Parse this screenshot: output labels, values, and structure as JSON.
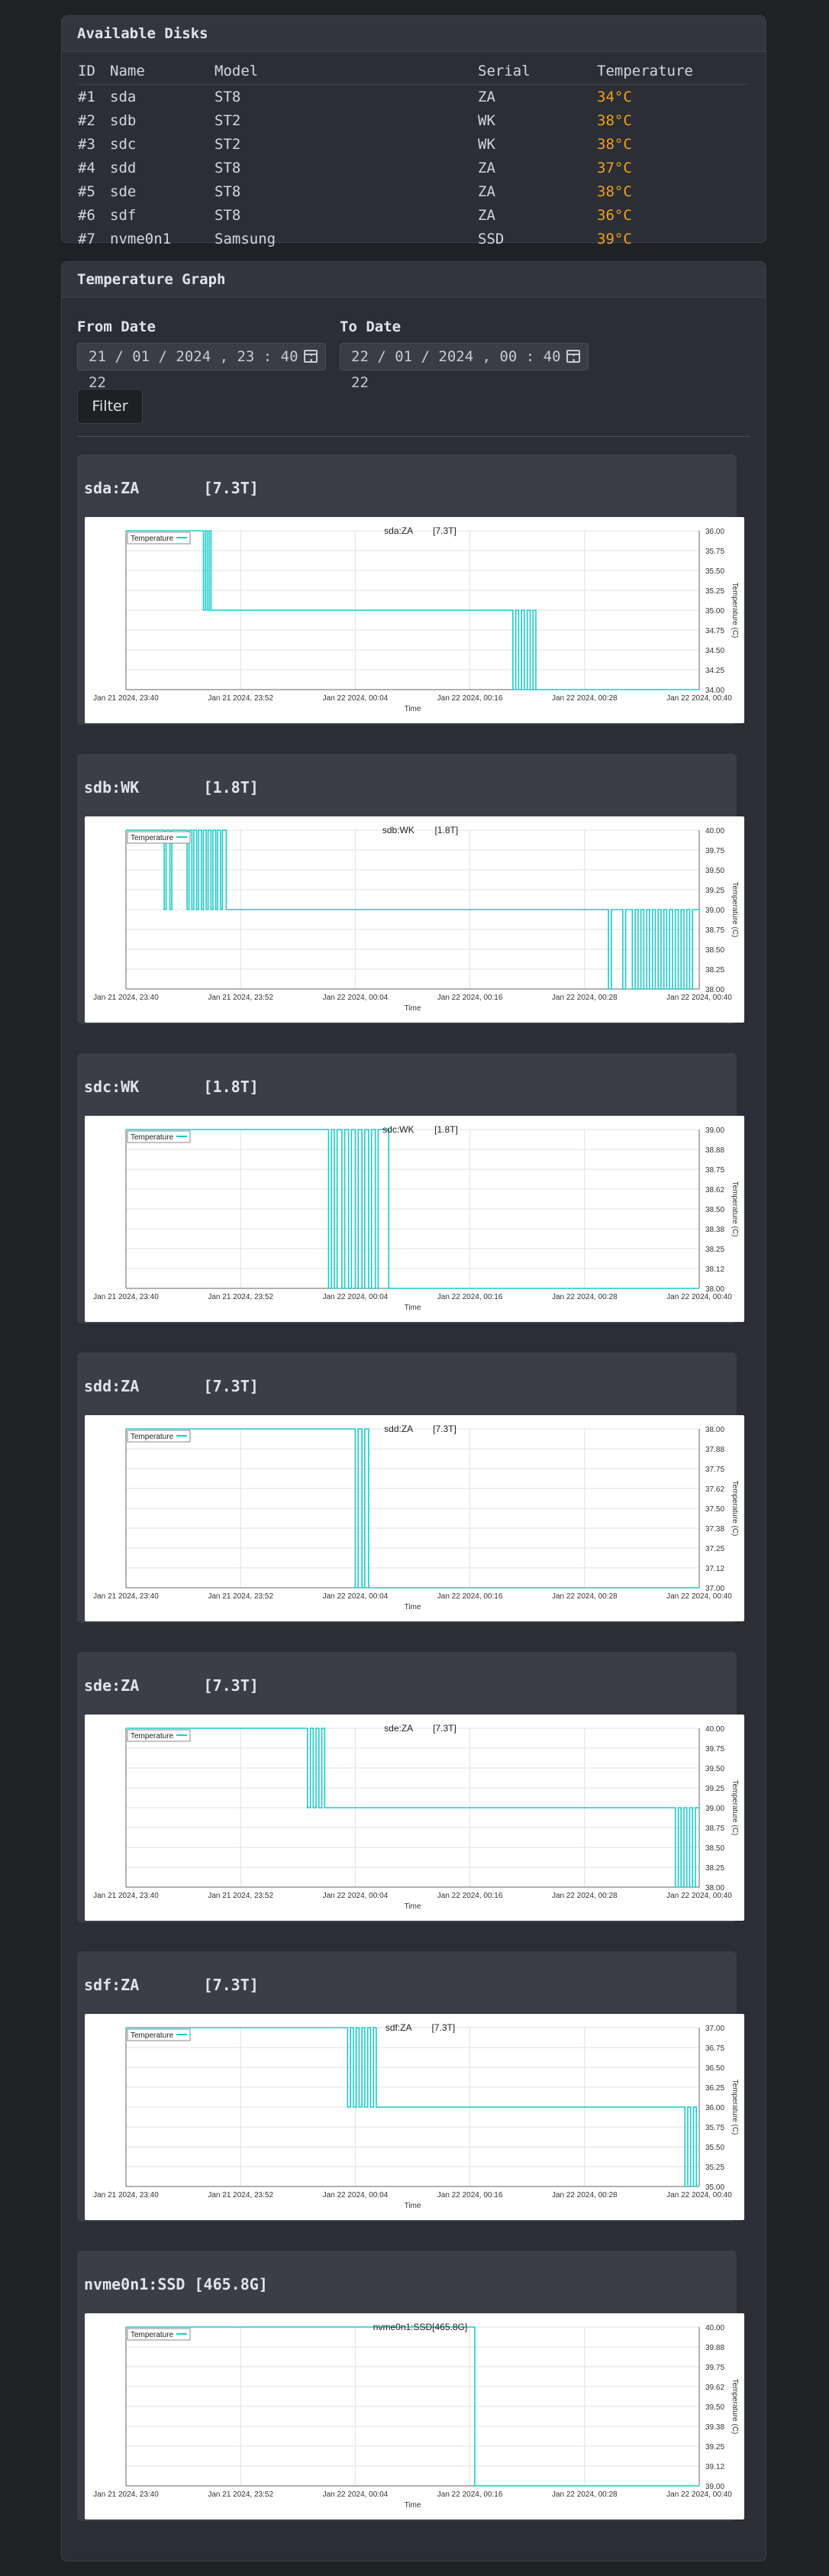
{
  "disks": {
    "title": "Available Disks",
    "headers": [
      "ID",
      "Name",
      "Model",
      "Serial",
      "Temperature"
    ],
    "rows": [
      {
        "id": "#1",
        "name": "sda",
        "model": "ST8",
        "serial": "ZA",
        "temp": "34°C"
      },
      {
        "id": "#2",
        "name": "sdb",
        "model": "ST2",
        "serial": "WK",
        "temp": "38°C"
      },
      {
        "id": "#3",
        "name": "sdc",
        "model": "ST2",
        "serial": "WK",
        "temp": "38°C"
      },
      {
        "id": "#4",
        "name": "sdd",
        "model": "ST8",
        "serial": "ZA",
        "temp": "37°C"
      },
      {
        "id": "#5",
        "name": "sde",
        "model": "ST8",
        "serial": "ZA",
        "temp": "38°C"
      },
      {
        "id": "#6",
        "name": "sdf",
        "model": "ST8",
        "serial": "ZA",
        "temp": "36°C"
      },
      {
        "id": "#7",
        "name": "nvme0n1",
        "model": "Samsung",
        "serial": "SSD",
        "temp": "39°C"
      }
    ]
  },
  "graph": {
    "title": "Temperature Graph",
    "from_label": "From Date",
    "to_label": "To Date",
    "from_value": "21 / 01 / 2024 ,  23 : 40 : 22",
    "to_value": "22 / 01 / 2024 ,  00 : 40 : 22",
    "filter_label": "Filter"
  },
  "chart_data": [
    {
      "type": "line",
      "card_title": "sda:ZA       [7.3T]",
      "title": "sda:ZA        [7.3T]",
      "legend": "Temperature",
      "xlabel": "Time",
      "ylabel": "Temperature (C)",
      "x_ticks": [
        "Jan 21 2024, 23:40",
        "Jan 21 2024, 23:52",
        "Jan 22 2024, 00:04",
        "Jan 22 2024, 00:16",
        "Jan 22 2024, 00:28",
        "Jan 22 2024, 00:40"
      ],
      "y_ticks": [
        "36.00",
        "35.75",
        "35.50",
        "35.25",
        "35.00",
        "34.75",
        "34.50",
        "34.25",
        "34.00"
      ],
      "ylim": [
        34,
        36
      ],
      "points": [
        [
          0,
          36
        ],
        [
          8.1,
          36
        ],
        [
          8.1,
          35
        ],
        [
          8.3,
          35
        ],
        [
          8.3,
          36
        ],
        [
          8.5,
          36
        ],
        [
          8.5,
          35
        ],
        [
          8.7,
          35
        ],
        [
          8.7,
          36
        ],
        [
          8.9,
          36
        ],
        [
          8.9,
          35
        ],
        [
          40.5,
          35
        ],
        [
          40.5,
          34
        ],
        [
          40.8,
          34
        ],
        [
          40.8,
          35
        ],
        [
          41.1,
          35
        ],
        [
          41.1,
          34
        ],
        [
          41.4,
          34
        ],
        [
          41.4,
          35
        ],
        [
          41.7,
          35
        ],
        [
          41.7,
          34
        ],
        [
          42.0,
          34
        ],
        [
          42.0,
          35
        ],
        [
          42.3,
          35
        ],
        [
          42.3,
          34
        ],
        [
          42.6,
          34
        ],
        [
          42.6,
          35
        ],
        [
          42.9,
          35
        ],
        [
          42.9,
          34
        ],
        [
          60,
          34
        ]
      ]
    },
    {
      "type": "line",
      "card_title": "sdb:WK       [1.8T]",
      "title": "sdb:WK        [1.8T]",
      "legend": "Temperature",
      "xlabel": "Time",
      "ylabel": "Temperature (C)",
      "x_ticks": [
        "Jan 21 2024, 23:40",
        "Jan 21 2024, 23:52",
        "Jan 22 2024, 00:04",
        "Jan 22 2024, 00:16",
        "Jan 22 2024, 00:28",
        "Jan 22 2024, 00:40"
      ],
      "y_ticks": [
        "40.00",
        "39.75",
        "39.50",
        "39.25",
        "39.00",
        "38.75",
        "38.50",
        "38.25",
        "38.00"
      ],
      "ylim": [
        38,
        40
      ],
      "points": [
        [
          0,
          40
        ],
        [
          4.0,
          40
        ],
        [
          4.0,
          39
        ],
        [
          4.2,
          39
        ],
        [
          4.2,
          40
        ],
        [
          4.6,
          40
        ],
        [
          4.6,
          39
        ],
        [
          4.8,
          39
        ],
        [
          4.8,
          40
        ],
        [
          6.4,
          40
        ],
        [
          6.4,
          39
        ],
        [
          6.6,
          39
        ],
        [
          6.6,
          40
        ],
        [
          6.9,
          40
        ],
        [
          6.9,
          39
        ],
        [
          7.1,
          39
        ],
        [
          7.1,
          40
        ],
        [
          7.4,
          40
        ],
        [
          7.4,
          39
        ],
        [
          7.6,
          39
        ],
        [
          7.6,
          40
        ],
        [
          7.9,
          40
        ],
        [
          7.9,
          39
        ],
        [
          8.1,
          39
        ],
        [
          8.1,
          40
        ],
        [
          8.4,
          40
        ],
        [
          8.4,
          39
        ],
        [
          8.6,
          39
        ],
        [
          8.6,
          40
        ],
        [
          8.9,
          40
        ],
        [
          8.9,
          39
        ],
        [
          9.1,
          39
        ],
        [
          9.1,
          40
        ],
        [
          9.4,
          40
        ],
        [
          9.4,
          39
        ],
        [
          9.6,
          39
        ],
        [
          9.6,
          40
        ],
        [
          9.9,
          40
        ],
        [
          9.9,
          39
        ],
        [
          10.1,
          39
        ],
        [
          10.1,
          40
        ],
        [
          10.5,
          40
        ],
        [
          10.5,
          39
        ],
        [
          50.5,
          39
        ],
        [
          50.5,
          38
        ],
        [
          50.8,
          38
        ],
        [
          50.8,
          39
        ],
        [
          52.0,
          39
        ],
        [
          52.0,
          38
        ],
        [
          52.3,
          38
        ],
        [
          52.3,
          39
        ],
        [
          53.0,
          39
        ],
        [
          53.0,
          38
        ],
        [
          53.3,
          38
        ],
        [
          53.3,
          39
        ],
        [
          53.6,
          39
        ],
        [
          53.6,
          38
        ],
        [
          53.9,
          38
        ],
        [
          53.9,
          39
        ],
        [
          54.2,
          39
        ],
        [
          54.2,
          38
        ],
        [
          54.5,
          38
        ],
        [
          54.5,
          39
        ],
        [
          54.8,
          39
        ],
        [
          54.8,
          38
        ],
        [
          55.1,
          38
        ],
        [
          55.1,
          39
        ],
        [
          55.4,
          39
        ],
        [
          55.4,
          38
        ],
        [
          55.7,
          38
        ],
        [
          55.7,
          39
        ],
        [
          56.0,
          39
        ],
        [
          56.0,
          38
        ],
        [
          56.3,
          38
        ],
        [
          56.3,
          39
        ],
        [
          56.6,
          39
        ],
        [
          56.6,
          38
        ],
        [
          56.9,
          38
        ],
        [
          56.9,
          39
        ],
        [
          57.2,
          39
        ],
        [
          57.2,
          38
        ],
        [
          57.5,
          38
        ],
        [
          57.5,
          39
        ],
        [
          57.8,
          39
        ],
        [
          57.8,
          38
        ],
        [
          58.1,
          38
        ],
        [
          58.1,
          39
        ],
        [
          58.4,
          39
        ],
        [
          58.4,
          38
        ],
        [
          58.7,
          38
        ],
        [
          58.7,
          39
        ],
        [
          59.0,
          39
        ],
        [
          59.0,
          38
        ],
        [
          59.3,
          38
        ],
        [
          59.3,
          39
        ],
        [
          60,
          39
        ]
      ]
    },
    {
      "type": "line",
      "card_title": "sdc:WK       [1.8T]",
      "title": "sdc:WK        [1.8T]",
      "legend": "Temperature",
      "xlabel": "Time",
      "ylabel": "Temperature (C)",
      "x_ticks": [
        "Jan 21 2024, 23:40",
        "Jan 21 2024, 23:52",
        "Jan 22 2024, 00:04",
        "Jan 22 2024, 00:16",
        "Jan 22 2024, 00:28",
        "Jan 22 2024, 00:40"
      ],
      "y_ticks": [
        "39.00",
        "38.88",
        "38.75",
        "38.62",
        "38.50",
        "38.38",
        "38.25",
        "38.12",
        "38.00"
      ],
      "ylim": [
        38,
        39
      ],
      "points": [
        [
          0,
          39
        ],
        [
          21.2,
          39
        ],
        [
          21.2,
          38
        ],
        [
          21.5,
          38
        ],
        [
          21.5,
          39
        ],
        [
          21.8,
          39
        ],
        [
          21.8,
          38
        ],
        [
          22.1,
          38
        ],
        [
          22.1,
          39
        ],
        [
          22.6,
          39
        ],
        [
          22.6,
          38
        ],
        [
          22.9,
          38
        ],
        [
          22.9,
          39
        ],
        [
          23.3,
          39
        ],
        [
          23.3,
          38
        ],
        [
          23.6,
          38
        ],
        [
          23.6,
          39
        ],
        [
          24.0,
          39
        ],
        [
          24.0,
          38
        ],
        [
          24.3,
          38
        ],
        [
          24.3,
          39
        ],
        [
          24.7,
          39
        ],
        [
          24.7,
          38
        ],
        [
          25.0,
          38
        ],
        [
          25.0,
          39
        ],
        [
          25.4,
          39
        ],
        [
          25.4,
          38
        ],
        [
          25.7,
          38
        ],
        [
          25.7,
          39
        ],
        [
          26.1,
          39
        ],
        [
          26.1,
          38
        ],
        [
          26.4,
          38
        ],
        [
          26.4,
          39
        ],
        [
          27.5,
          39
        ],
        [
          27.5,
          38
        ],
        [
          60,
          38
        ]
      ]
    },
    {
      "type": "line",
      "card_title": "sdd:ZA       [7.3T]",
      "title": "sdd:ZA        [7.3T]",
      "legend": "Temperature",
      "xlabel": "Time",
      "ylabel": "Temperature (C)",
      "x_ticks": [
        "Jan 21 2024, 23:40",
        "Jan 21 2024, 23:52",
        "Jan 22 2024, 00:04",
        "Jan 22 2024, 00:16",
        "Jan 22 2024, 00:28",
        "Jan 22 2024, 00:40"
      ],
      "y_ticks": [
        "38.00",
        "37.88",
        "37.75",
        "37.62",
        "37.50",
        "37.38",
        "37.25",
        "37.12",
        "37.00"
      ],
      "ylim": [
        37,
        38
      ],
      "points": [
        [
          0,
          38
        ],
        [
          24.0,
          38
        ],
        [
          24.0,
          37
        ],
        [
          24.3,
          37
        ],
        [
          24.3,
          38
        ],
        [
          24.7,
          38
        ],
        [
          24.7,
          37
        ],
        [
          25.0,
          37
        ],
        [
          25.0,
          38
        ],
        [
          25.4,
          38
        ],
        [
          25.4,
          37
        ],
        [
          60,
          37
        ]
      ]
    },
    {
      "type": "line",
      "card_title": "sde:ZA       [7.3T]",
      "title": "sde:ZA        [7.3T]",
      "legend": "Temperature",
      "xlabel": "Time",
      "ylabel": "Temperature (C)",
      "x_ticks": [
        "Jan 21 2024, 23:40",
        "Jan 21 2024, 23:52",
        "Jan 22 2024, 00:04",
        "Jan 22 2024, 00:16",
        "Jan 22 2024, 00:28",
        "Jan 22 2024, 00:40"
      ],
      "y_ticks": [
        "40.00",
        "39.75",
        "39.50",
        "39.25",
        "39.00",
        "38.75",
        "38.50",
        "38.25",
        "38.00"
      ],
      "ylim": [
        38,
        40
      ],
      "points": [
        [
          0,
          40
        ],
        [
          19.0,
          40
        ],
        [
          19.0,
          39
        ],
        [
          19.3,
          39
        ],
        [
          19.3,
          40
        ],
        [
          19.6,
          40
        ],
        [
          19.6,
          39
        ],
        [
          19.9,
          39
        ],
        [
          19.9,
          40
        ],
        [
          20.2,
          40
        ],
        [
          20.2,
          39
        ],
        [
          20.5,
          39
        ],
        [
          20.5,
          40
        ],
        [
          20.8,
          40
        ],
        [
          20.8,
          39
        ],
        [
          57.5,
          39
        ],
        [
          57.5,
          38
        ],
        [
          57.8,
          38
        ],
        [
          57.8,
          39
        ],
        [
          58.1,
          39
        ],
        [
          58.1,
          38
        ],
        [
          58.4,
          38
        ],
        [
          58.4,
          39
        ],
        [
          58.7,
          39
        ],
        [
          58.7,
          38
        ],
        [
          59.0,
          38
        ],
        [
          59.0,
          39
        ],
        [
          59.3,
          39
        ],
        [
          59.3,
          38
        ],
        [
          59.6,
          38
        ],
        [
          59.6,
          39
        ],
        [
          60,
          39
        ]
      ]
    },
    {
      "type": "line",
      "card_title": "sdf:ZA       [7.3T]",
      "title": "sdf:ZA        [7.3T]",
      "legend": "Temperature",
      "xlabel": "Time",
      "ylabel": "Temperature (C)",
      "x_ticks": [
        "Jan 21 2024, 23:40",
        "Jan 21 2024, 23:52",
        "Jan 22 2024, 00:04",
        "Jan 22 2024, 00:16",
        "Jan 22 2024, 00:28",
        "Jan 22 2024, 00:40"
      ],
      "y_ticks": [
        "37.00",
        "36.75",
        "36.50",
        "36.25",
        "36.00",
        "35.75",
        "35.50",
        "35.25",
        "35.00"
      ],
      "ylim": [
        35,
        37
      ],
      "points": [
        [
          0,
          37
        ],
        [
          23.2,
          37
        ],
        [
          23.2,
          36
        ],
        [
          23.5,
          36
        ],
        [
          23.5,
          37
        ],
        [
          23.8,
          37
        ],
        [
          23.8,
          36
        ],
        [
          24.1,
          36
        ],
        [
          24.1,
          37
        ],
        [
          24.4,
          37
        ],
        [
          24.4,
          36
        ],
        [
          24.7,
          36
        ],
        [
          24.7,
          37
        ],
        [
          25.0,
          37
        ],
        [
          25.0,
          36
        ],
        [
          25.3,
          36
        ],
        [
          25.3,
          37
        ],
        [
          25.6,
          37
        ],
        [
          25.6,
          36
        ],
        [
          25.9,
          36
        ],
        [
          25.9,
          37
        ],
        [
          26.2,
          37
        ],
        [
          26.2,
          36
        ],
        [
          58.5,
          36
        ],
        [
          58.5,
          35
        ],
        [
          58.8,
          35
        ],
        [
          58.8,
          36
        ],
        [
          59.1,
          36
        ],
        [
          59.1,
          35
        ],
        [
          59.4,
          35
        ],
        [
          59.4,
          36
        ],
        [
          59.7,
          36
        ],
        [
          59.7,
          35
        ],
        [
          60,
          35
        ]
      ]
    },
    {
      "type": "line",
      "card_title": "nvme0n1:SSD [465.8G]",
      "title": "nvme0n1:SSD[465.8G]",
      "legend": "Temperature",
      "xlabel": "Time",
      "ylabel": "Temperature (C)",
      "x_ticks": [
        "Jan 21 2024, 23:40",
        "Jan 21 2024, 23:52",
        "Jan 22 2024, 00:04",
        "Jan 22 2024, 00:16",
        "Jan 22 2024, 00:28",
        "Jan 22 2024, 00:40"
      ],
      "y_ticks": [
        "40.00",
        "39.88",
        "39.75",
        "39.62",
        "39.50",
        "39.38",
        "39.25",
        "39.12",
        "39.00"
      ],
      "ylim": [
        39,
        40
      ],
      "points": [
        [
          0,
          40
        ],
        [
          36.5,
          40
        ],
        [
          36.5,
          39
        ],
        [
          60,
          39
        ]
      ]
    }
  ]
}
